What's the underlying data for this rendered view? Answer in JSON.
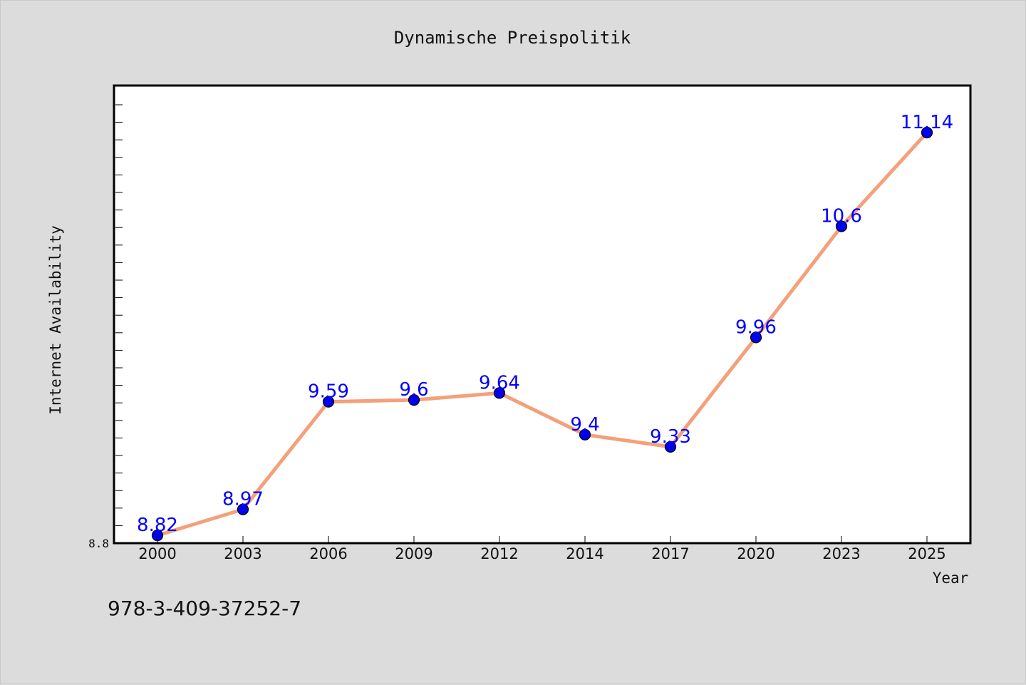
{
  "chart_data": {
    "type": "line",
    "title": "Dynamische Preispolitik",
    "xlabel": "Year",
    "ylabel": "Internet Availability",
    "categories": [
      "2000",
      "2003",
      "2006",
      "2009",
      "2012",
      "2014",
      "2017",
      "2020",
      "2023",
      "2025"
    ],
    "series": [
      {
        "values": [
          8.82,
          8.97,
          9.59,
          9.6,
          9.64,
          9.4,
          9.33,
          9.96,
          10.6,
          11.14
        ],
        "labels": [
          "8.82",
          "8.97",
          "9.59",
          "9.6",
          "9.64",
          "9.4",
          "9.33",
          "9.96",
          "10.6",
          "11.14"
        ]
      }
    ],
    "ylim": [
      8.8,
      11.4
    ],
    "yticklabels": [
      "8.8"
    ],
    "grid": false,
    "colors": {
      "line": "#f4a07a",
      "marker": "#0000ee",
      "marker_edge": "#000000",
      "data_label": "#0000ff",
      "plot_background": "#ffffff",
      "figure_background": "#dcdcdc"
    }
  },
  "footer": {
    "isbn": "978-3-409-37252-7"
  }
}
